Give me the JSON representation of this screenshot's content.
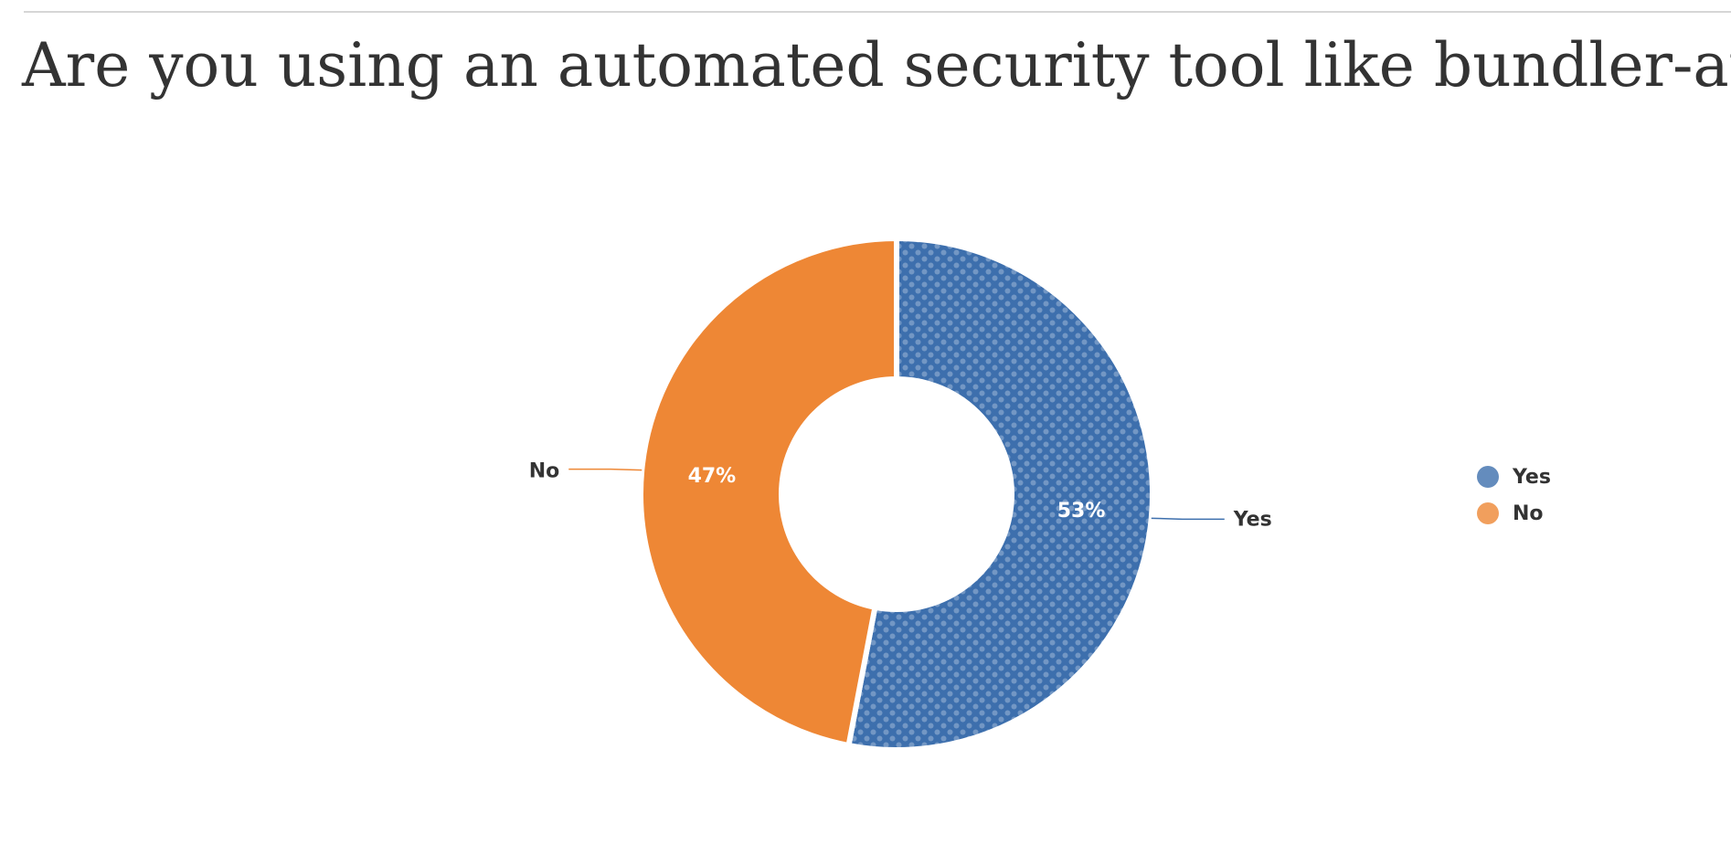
{
  "chart_data": {
    "type": "pie",
    "title": "Are you using an automated security tool like bundler-audit?",
    "categories": [
      "Yes",
      "No"
    ],
    "values": [
      53,
      47
    ],
    "value_labels": [
      "53%",
      "47%"
    ],
    "colors": [
      "#3d6fad",
      "#ee8735"
    ],
    "legend": "right"
  }
}
